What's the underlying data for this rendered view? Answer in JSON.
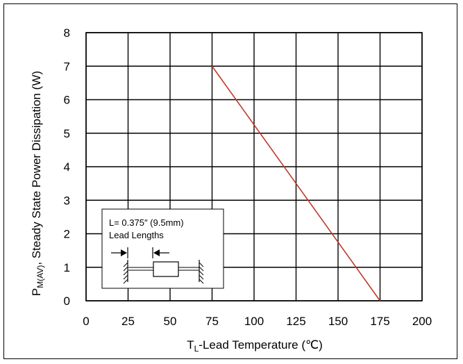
{
  "chart_data": {
    "type": "line",
    "xlabel": {
      "main": "T",
      "sub": "L",
      "rest": "-Lead Temperature (℃)"
    },
    "ylabel": {
      "pre": "P",
      "sub": "M(AV)",
      "rest": ", Steady State Power Dissipation (W)"
    },
    "xlim": [
      0,
      200
    ],
    "ylim": [
      0,
      8
    ],
    "x_ticks": [
      0,
      25,
      50,
      75,
      100,
      125,
      150,
      175,
      200
    ],
    "y_ticks": [
      0,
      1,
      2,
      3,
      4,
      5,
      6,
      7,
      8
    ],
    "grid": true,
    "series": [
      {
        "color": "#c0392b",
        "x": [
          75,
          175
        ],
        "y": [
          7,
          0
        ]
      }
    ],
    "annotation": {
      "line1": "L= 0.375″ (9.5mm)",
      "line2": "Lead Lengths"
    }
  }
}
